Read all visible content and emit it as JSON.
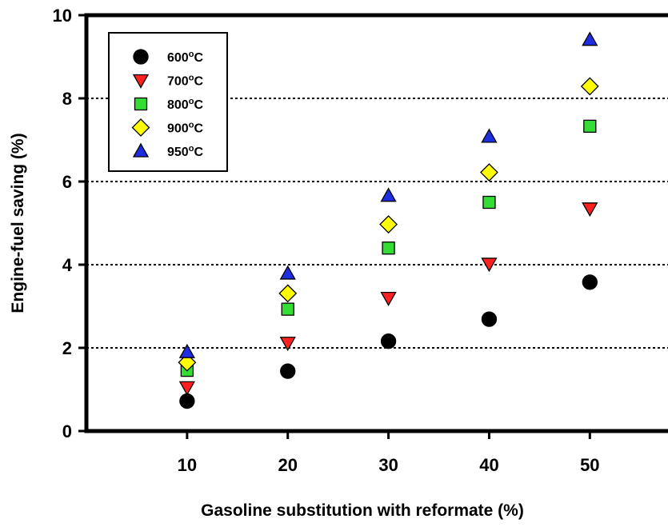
{
  "chart_data": {
    "type": "scatter",
    "title": "",
    "xlabel": "Gasoline substitution with reformate (%)",
    "ylabel": "Engine-fuel saving (%)",
    "xlim": [
      0,
      58
    ],
    "ylim": [
      0,
      10
    ],
    "x_ticks": [
      10,
      20,
      30,
      40,
      50
    ],
    "y_ticks": [
      0,
      2,
      4,
      6,
      8,
      10
    ],
    "grid": "horizontal dotted at 2, 4, 6, 8",
    "legend_position": "top-left",
    "x": [
      10,
      20,
      30,
      40,
      50
    ],
    "series": [
      {
        "name": "600",
        "unit": "oC",
        "marker": "circle",
        "color": "#000000",
        "values": [
          0.72,
          1.44,
          2.16,
          2.69,
          3.58
        ]
      },
      {
        "name": "700",
        "unit": "oC",
        "marker": "triangle-down",
        "color": "#ff2020",
        "values": [
          1.05,
          2.12,
          3.2,
          4.02,
          5.35
        ]
      },
      {
        "name": "800",
        "unit": "oC",
        "marker": "square",
        "color": "#33dd33",
        "values": [
          1.46,
          2.93,
          4.4,
          5.5,
          7.33
        ]
      },
      {
        "name": "900",
        "unit": "oC",
        "marker": "diamond",
        "color": "#ffff00",
        "values": [
          1.65,
          3.31,
          4.97,
          6.22,
          8.29
        ]
      },
      {
        "name": "950",
        "unit": "oC",
        "marker": "triangle-up",
        "color": "#1f2de0",
        "values": [
          1.9,
          3.79,
          5.66,
          7.08,
          9.41
        ]
      }
    ]
  }
}
